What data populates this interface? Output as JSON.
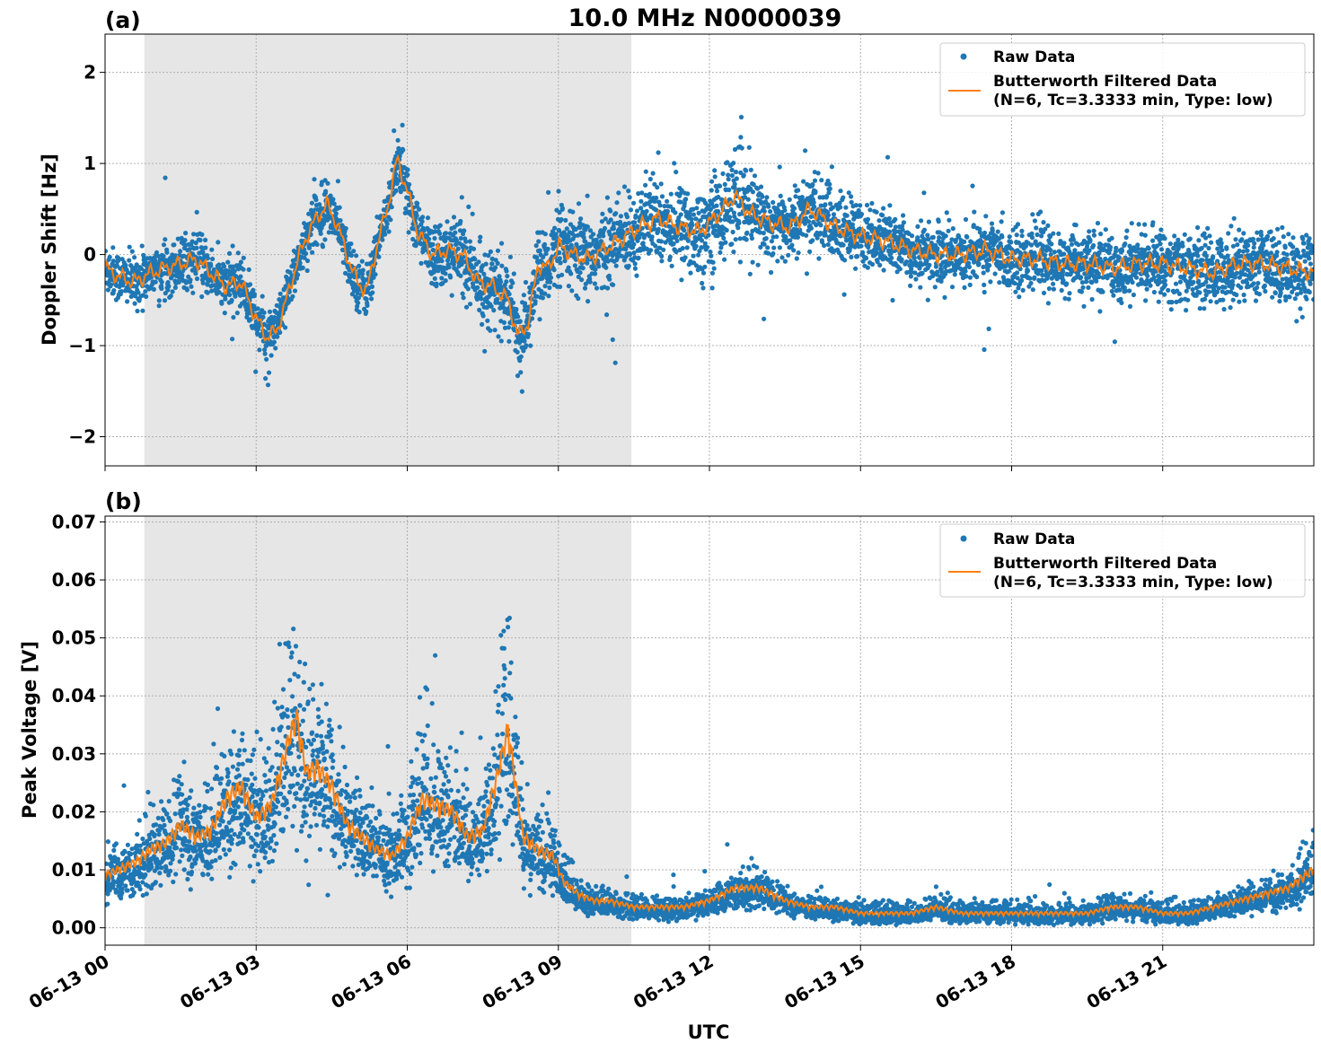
{
  "figure": {
    "title": "10.0 MHz N0000039",
    "xlabel": "UTC"
  },
  "colors": {
    "raw": "#1f77b4",
    "filtered": "#ff7f0e",
    "shade": "#e6e6e6",
    "grid": "#b0b0b0"
  },
  "chart_data": [
    {
      "type": "scatter",
      "panel_label": "(a)",
      "ylabel": "Doppler Shift [Hz]",
      "xlim": [
        0,
        24
      ],
      "ylim": [
        -2.32,
        2.42
      ],
      "x_ticks": [
        0,
        3,
        6,
        9,
        12,
        15,
        18,
        21
      ],
      "x_tick_labels": [
        "06-13 00",
        "06-13 03",
        "06-13 06",
        "06-13 09",
        "06-13 12",
        "06-13 15",
        "06-13 18",
        "06-13 21"
      ],
      "y_ticks": [
        -2,
        -1,
        0,
        1,
        2
      ],
      "y_tick_labels": [
        "−2",
        "−1",
        "0",
        "1",
        "2"
      ],
      "grid": true,
      "legend_position": "top-right",
      "shaded_interval_hours": [
        0.78,
        10.45
      ],
      "series": [
        {
          "name": "Raw Data",
          "style": "points",
          "spread": [
            0.25,
            0.25,
            0.25,
            0.25,
            0.25,
            0.25,
            0.3,
            0.35,
            0.35,
            0.4,
            0.4,
            0.45,
            0.45,
            0.35,
            0.35,
            0.3,
            0.3,
            0.3,
            0.3,
            0.3,
            0.3,
            0.35,
            0.35,
            0.35,
            0.3
          ]
        },
        {
          "name": "Butterworth Filtered Data\n(N=6, Tc=3.3333 min, Type: low)",
          "legend_lines": [
            "Butterworth Filtered Data",
            "(N=6, Tc=3.3333 min, Type: low)"
          ],
          "style": "line",
          "x": [
            0,
            0.3,
            0.6,
            0.9,
            1.2,
            1.5,
            1.8,
            2.1,
            2.4,
            2.7,
            3.0,
            3.2,
            3.4,
            3.6,
            3.8,
            4.0,
            4.2,
            4.4,
            4.6,
            4.8,
            5.0,
            5.2,
            5.4,
            5.6,
            5.8,
            6.0,
            6.2,
            6.5,
            6.8,
            7.1,
            7.4,
            7.7,
            8.0,
            8.2,
            8.4,
            8.6,
            8.8,
            9.0,
            9.3,
            9.6,
            9.9,
            10.2,
            10.6,
            11.0,
            11.4,
            11.8,
            12.2,
            12.5,
            12.8,
            13.2,
            13.6,
            14.0,
            14.5,
            15.0,
            15.5,
            16.0,
            16.5,
            17.0,
            17.5,
            18.0,
            18.5,
            19.0,
            19.5,
            20.0,
            20.5,
            21.0,
            21.5,
            22.0,
            22.5,
            23.0,
            23.5,
            24.0
          ],
          "y": [
            -0.15,
            -0.25,
            -0.3,
            -0.2,
            -0.15,
            -0.1,
            -0.05,
            -0.2,
            -0.35,
            -0.3,
            -0.7,
            -0.9,
            -0.85,
            -0.5,
            -0.1,
            0.2,
            0.4,
            0.55,
            0.35,
            0.0,
            -0.3,
            -0.4,
            0.1,
            0.5,
            1.05,
            0.7,
            0.25,
            0.0,
            0.05,
            0.0,
            -0.3,
            -0.35,
            -0.5,
            -0.9,
            -0.75,
            -0.1,
            -0.15,
            0.1,
            0.0,
            -0.05,
            0.05,
            0.15,
            0.3,
            0.4,
            0.3,
            0.25,
            0.45,
            0.65,
            0.45,
            0.35,
            0.3,
            0.5,
            0.3,
            0.2,
            0.15,
            0.05,
            0.0,
            0.0,
            0.05,
            -0.05,
            -0.05,
            -0.1,
            -0.1,
            -0.15,
            -0.1,
            -0.1,
            -0.15,
            -0.2,
            -0.1,
            -0.1,
            -0.15,
            -0.2
          ]
        }
      ]
    },
    {
      "type": "scatter",
      "panel_label": "(b)",
      "ylabel": "Peak Voltage [V]",
      "xlim": [
        0,
        24
      ],
      "ylim": [
        -0.003,
        0.071
      ],
      "x_ticks": [
        0,
        3,
        6,
        9,
        12,
        15,
        18,
        21
      ],
      "x_tick_labels": [
        "06-13 00",
        "06-13 03",
        "06-13 06",
        "06-13 09",
        "06-13 12",
        "06-13 15",
        "06-13 18",
        "06-13 21"
      ],
      "y_ticks": [
        0.0,
        0.01,
        0.02,
        0.03,
        0.04,
        0.05,
        0.06,
        0.07
      ],
      "y_tick_labels": [
        "0.00",
        "0.01",
        "0.02",
        "0.03",
        "0.04",
        "0.05",
        "0.06",
        "0.07"
      ],
      "grid": true,
      "legend_position": "top-right",
      "shaded_interval_hours": [
        0.78,
        10.45
      ],
      "series": [
        {
          "name": "Raw Data",
          "style": "points"
        },
        {
          "name": "Butterworth Filtered Data\n(N=6, Tc=3.3333 min, Type: low)",
          "legend_lines": [
            "Butterworth Filtered Data",
            "(N=6, Tc=3.3333 min, Type: low)"
          ],
          "style": "line",
          "x": [
            0,
            0.3,
            0.6,
            0.9,
            1.2,
            1.5,
            1.8,
            2.1,
            2.4,
            2.7,
            3.0,
            3.3,
            3.6,
            3.8,
            4.0,
            4.2,
            4.5,
            4.8,
            5.1,
            5.4,
            5.7,
            6.0,
            6.3,
            6.6,
            6.9,
            7.2,
            7.5,
            7.8,
            8.0,
            8.3,
            8.6,
            8.9,
            9.1,
            9.4,
            9.7,
            10.0,
            10.5,
            11.0,
            11.5,
            12.0,
            12.5,
            13.0,
            13.5,
            14.0,
            14.5,
            15.0,
            15.5,
            16.0,
            16.5,
            17.0,
            17.5,
            18.0,
            18.5,
            19.0,
            19.5,
            20.0,
            20.5,
            21.0,
            21.5,
            22.0,
            22.5,
            23.0,
            23.5,
            24.0
          ],
          "y": [
            0.008,
            0.009,
            0.01,
            0.012,
            0.013,
            0.016,
            0.014,
            0.015,
            0.02,
            0.022,
            0.017,
            0.019,
            0.028,
            0.033,
            0.024,
            0.025,
            0.022,
            0.016,
            0.014,
            0.012,
            0.011,
            0.014,
            0.02,
            0.019,
            0.018,
            0.014,
            0.015,
            0.024,
            0.031,
            0.014,
            0.012,
            0.011,
            0.007,
            0.005,
            0.004,
            0.004,
            0.003,
            0.003,
            0.003,
            0.004,
            0.006,
            0.006,
            0.004,
            0.003,
            0.003,
            0.002,
            0.002,
            0.002,
            0.003,
            0.002,
            0.002,
            0.002,
            0.002,
            0.002,
            0.002,
            0.003,
            0.003,
            0.002,
            0.002,
            0.003,
            0.004,
            0.005,
            0.006,
            0.009
          ]
        }
      ]
    }
  ]
}
